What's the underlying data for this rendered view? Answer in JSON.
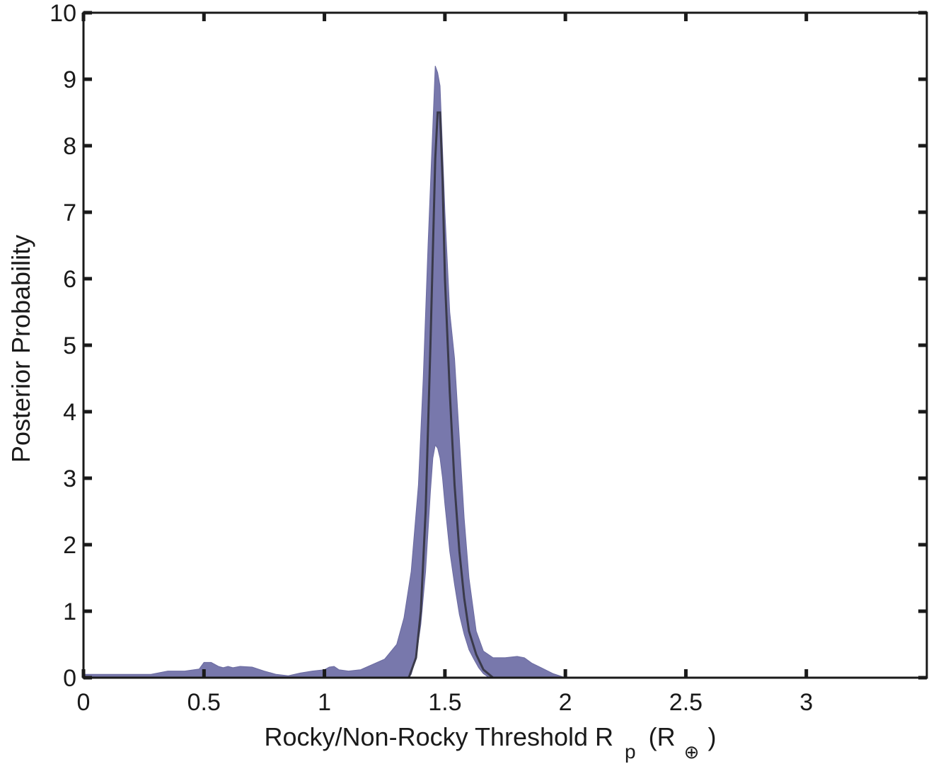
{
  "chart_data": {
    "type": "area",
    "title": "",
    "xlabel": "Rocky/Non-Rocky Threshold R",
    "xlabel_subscript": "p",
    "xlabel_unit_open": "(R",
    "xlabel_unit_symbol": "⊕",
    "xlabel_unit_close": ")",
    "ylabel": "Posterior Probability",
    "xlim": [
      0,
      3.5
    ],
    "ylim": [
      0,
      10
    ],
    "xticks": [
      0,
      0.5,
      1,
      1.5,
      2,
      2.5,
      3
    ],
    "xtick_labels": [
      "0",
      "0.5",
      "1",
      "1.5",
      "2",
      "2.5",
      "3"
    ],
    "yticks": [
      0,
      1,
      2,
      3,
      4,
      5,
      6,
      7,
      8,
      9,
      10
    ],
    "ytick_labels": [
      "0",
      "1",
      "2",
      "3",
      "4",
      "5",
      "6",
      "7",
      "8",
      "9",
      "10"
    ],
    "grid": false,
    "colors": {
      "band": "#7878ac",
      "median": "#3a3a4a",
      "axis": "#1a1a1a"
    },
    "band_upper": {
      "x": [
        0,
        0.28,
        0.35,
        0.42,
        0.48,
        0.5,
        0.53,
        0.56,
        0.58,
        0.6,
        0.62,
        0.65,
        0.7,
        0.75,
        0.8,
        0.85,
        0.9,
        0.95,
        1.0,
        1.02,
        1.04,
        1.06,
        1.1,
        1.15,
        1.2,
        1.25,
        1.3,
        1.33,
        1.36,
        1.39,
        1.41,
        1.43,
        1.45,
        1.46,
        1.47,
        1.48,
        1.5,
        1.52,
        1.54,
        1.56,
        1.58,
        1.6,
        1.63,
        1.66,
        1.7,
        1.75,
        1.8,
        1.83,
        1.86,
        1.9,
        1.95,
        2.0,
        3.5
      ],
      "y": [
        0.05,
        0.05,
        0.1,
        0.1,
        0.13,
        0.23,
        0.23,
        0.17,
        0.15,
        0.17,
        0.15,
        0.17,
        0.16,
        0.1,
        0.05,
        0.03,
        0.07,
        0.1,
        0.12,
        0.16,
        0.17,
        0.12,
        0.1,
        0.12,
        0.2,
        0.28,
        0.5,
        0.9,
        1.6,
        2.9,
        4.5,
        6.5,
        8.3,
        9.2,
        9.1,
        8.9,
        7.0,
        5.5,
        4.8,
        3.6,
        2.4,
        1.5,
        0.7,
        0.4,
        0.3,
        0.3,
        0.32,
        0.3,
        0.22,
        0.15,
        0.06,
        0.0,
        0.0
      ]
    },
    "band_lower": {
      "x": [
        0,
        1.34,
        1.36,
        1.38,
        1.4,
        1.42,
        1.44,
        1.45,
        1.46,
        1.47,
        1.48,
        1.49,
        1.5,
        1.52,
        1.54,
        1.56,
        1.58,
        1.6,
        1.62,
        1.64,
        1.66,
        1.68,
        1.7,
        3.5
      ],
      "y": [
        0.0,
        0.0,
        0.05,
        0.3,
        0.8,
        1.6,
        2.8,
        3.3,
        3.5,
        3.45,
        3.3,
        3.0,
        2.6,
        1.9,
        1.4,
        0.95,
        0.65,
        0.42,
        0.28,
        0.15,
        0.06,
        0.01,
        0.0,
        0.0
      ]
    },
    "median": {
      "x": [
        1.35,
        1.38,
        1.4,
        1.42,
        1.44,
        1.46,
        1.47,
        1.48,
        1.49,
        1.5,
        1.52,
        1.54,
        1.56,
        1.58,
        1.6,
        1.63,
        1.66,
        1.7
      ],
      "y": [
        0.0,
        0.3,
        1.0,
        2.5,
        5.0,
        7.8,
        8.5,
        8.5,
        7.5,
        6.0,
        4.3,
        2.9,
        1.9,
        1.2,
        0.7,
        0.35,
        0.12,
        0.0
      ]
    }
  }
}
